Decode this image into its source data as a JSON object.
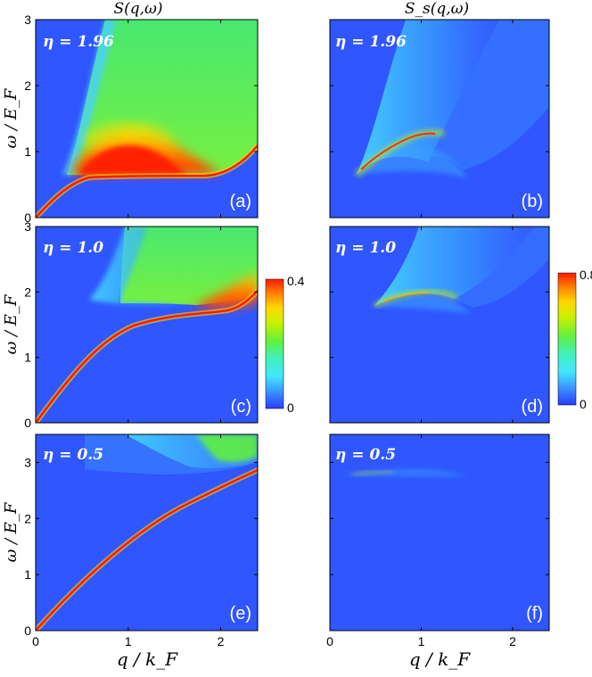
{
  "chart_data": {
    "type": "heatmap",
    "column_titles": {
      "left": "S(q,ω)",
      "right": "S_s(q,ω)"
    },
    "xlabel": "q / k_F",
    "ylabel": "ω / E_F",
    "xlim": [
      0,
      2.4
    ],
    "x_ticks": [
      "0",
      "1",
      "2"
    ],
    "colorbars": [
      {
        "name": "left-colorbar",
        "min_label": "0",
        "max_label": "0.4",
        "min": 0,
        "max": 0.4
      },
      {
        "name": "right-colorbar",
        "min_label": "0",
        "max_label": "0.8",
        "min": 0,
        "max": 0.8
      }
    ],
    "colors": {
      "background": "#2f56ff",
      "scale": [
        "#2a3cff",
        "#3a8dff",
        "#42e6ff",
        "#40f0c0",
        "#60f040",
        "#c8f000",
        "#ffd800",
        "#ff7a00",
        "#ff1a00"
      ]
    },
    "panels": [
      {
        "id": "a",
        "label": "(a)",
        "eta_label": "η = 1.96",
        "eta": 1.96,
        "quantity": "S",
        "ylim": [
          0,
          3
        ],
        "y_ticks": [
          "0",
          "1",
          "2",
          "3"
        ],
        "continuum_edge": 0.62,
        "plasmon_end": 1.05
      },
      {
        "id": "b",
        "label": "(b)",
        "eta_label": "η = 1.96",
        "eta": 1.96,
        "quantity": "S_s",
        "ylim": [
          0,
          3
        ],
        "y_ticks": [],
        "continuum_edge": 0.62
      },
      {
        "id": "c",
        "label": "(c)",
        "eta_label": "η = 1.0",
        "eta": 1.0,
        "quantity": "S",
        "ylim": [
          0,
          3
        ],
        "y_ticks": [
          "0",
          "1",
          "2",
          "3"
        ],
        "continuum_edge": 1.65,
        "plasmon_end": 2.05
      },
      {
        "id": "d",
        "label": "(d)",
        "eta_label": "η = 1.0",
        "eta": 1.0,
        "quantity": "S_s",
        "ylim": [
          0,
          3
        ],
        "y_ticks": [],
        "continuum_edge": 1.65
      },
      {
        "id": "e",
        "label": "(e)",
        "eta_label": "η = 0.5",
        "eta": 0.5,
        "quantity": "S",
        "ylim": [
          0,
          3.5
        ],
        "y_ticks": [
          "0",
          "1",
          "2",
          "3"
        ],
        "continuum_edge": 2.8,
        "plasmon_end": 2.9
      },
      {
        "id": "f",
        "label": "(f)",
        "eta_label": "η = 0.5",
        "eta": 0.5,
        "quantity": "S_s",
        "ylim": [
          0,
          3.5
        ],
        "y_ticks": [],
        "continuum_edge": 2.8
      }
    ]
  }
}
